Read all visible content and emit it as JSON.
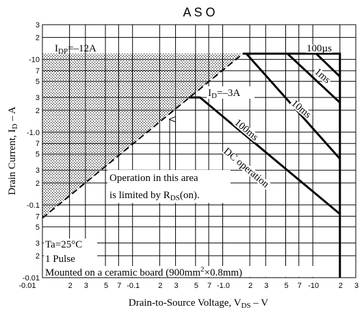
{
  "chart_data": {
    "type": "line",
    "title": "A S O",
    "log_x": true,
    "log_y": true,
    "grid": true,
    "xlabel": [
      "Drain-to-Source Voltage, V",
      "DS",
      "  –  V"
    ],
    "ylabel": [
      "Drain Current, I",
      "D",
      "  –  A"
    ],
    "xlim": [
      0.01,
      30
    ],
    "ylim": [
      0.01,
      30
    ],
    "xticks": [
      {
        "value": 0.01,
        "label": "-0.01"
      },
      {
        "value": 0.02,
        "label": "2"
      },
      {
        "value": 0.03,
        "label": "3"
      },
      {
        "value": 0.05,
        "label": "5"
      },
      {
        "value": 0.07,
        "label": "7"
      },
      {
        "value": 0.1,
        "label": "-0.1"
      },
      {
        "value": 0.2,
        "label": "2"
      },
      {
        "value": 0.3,
        "label": "3"
      },
      {
        "value": 0.5,
        "label": "5"
      },
      {
        "value": 0.7,
        "label": "7"
      },
      {
        "value": 1,
        "label": "-1.0"
      },
      2,
      3,
      5,
      7,
      {
        "value": 10,
        "label": "-10"
      },
      {
        "value": 20,
        "label": "2"
      },
      {
        "value": 30,
        "label": "3"
      }
    ],
    "yticks": [
      {
        "value": 0.01,
        "label": "-0.01"
      },
      {
        "value": 0.02,
        "label": "2"
      },
      {
        "value": 0.03,
        "label": "3"
      },
      {
        "value": 0.05,
        "label": "5"
      },
      {
        "value": 0.07,
        "label": "7"
      },
      {
        "value": 0.1,
        "label": "-0.1"
      },
      {
        "value": 0.2,
        "label": "2"
      },
      {
        "value": 0.3,
        "label": "3"
      },
      {
        "value": 0.5,
        "label": "5"
      },
      {
        "value": 0.7,
        "label": "7"
      },
      {
        "value": 1,
        "label": "-1.0"
      },
      2,
      3,
      5,
      7,
      {
        "value": 10,
        "label": "-10"
      },
      {
        "value": 20,
        "label": "2"
      },
      {
        "value": 30,
        "label": "3"
      }
    ],
    "series": [
      {
        "color": "#000000",
        "dashed": true,
        "x": [
          0.01,
          1.68
        ],
        "y": [
          0.066,
          12
        ]
      },
      {
        "name": "100µs",
        "color": "#000000",
        "x": [
          1.68,
          20,
          20
        ],
        "y": [
          12,
          12,
          0.01
        ]
      },
      {
        "name": "1ms",
        "color": "#000000",
        "x": [
          10.9,
          20
        ],
        "y": [
          12,
          5.8
        ]
      },
      {
        "name": "10ms",
        "color": "#000000",
        "x": [
          5.23,
          20
        ],
        "y": [
          12,
          2.55
        ]
      },
      {
        "name": "100ms",
        "color": "#000000",
        "x": [
          1.83,
          20
        ],
        "y": [
          12,
          0.43
        ]
      },
      {
        "name": "DC operation",
        "color": "#000000",
        "x": [
          0.42,
          0.56,
          20
        ],
        "y": [
          3,
          3,
          0.075
        ]
      }
    ],
    "annotations": {
      "idp": [
        "I",
        "DP",
        "=–12A"
      ],
      "id": [
        "I",
        "D",
        "=–3A"
      ],
      "area1": "Operation in this area",
      "area2": [
        "is limited by R",
        "DS",
        "(on)."
      ],
      "ta": "Ta=25°C",
      "pulse": "1 Pulse",
      "board": [
        "Mounted on a ceramic board (900mm",
        "2",
        "×0.8mm)"
      ]
    }
  }
}
